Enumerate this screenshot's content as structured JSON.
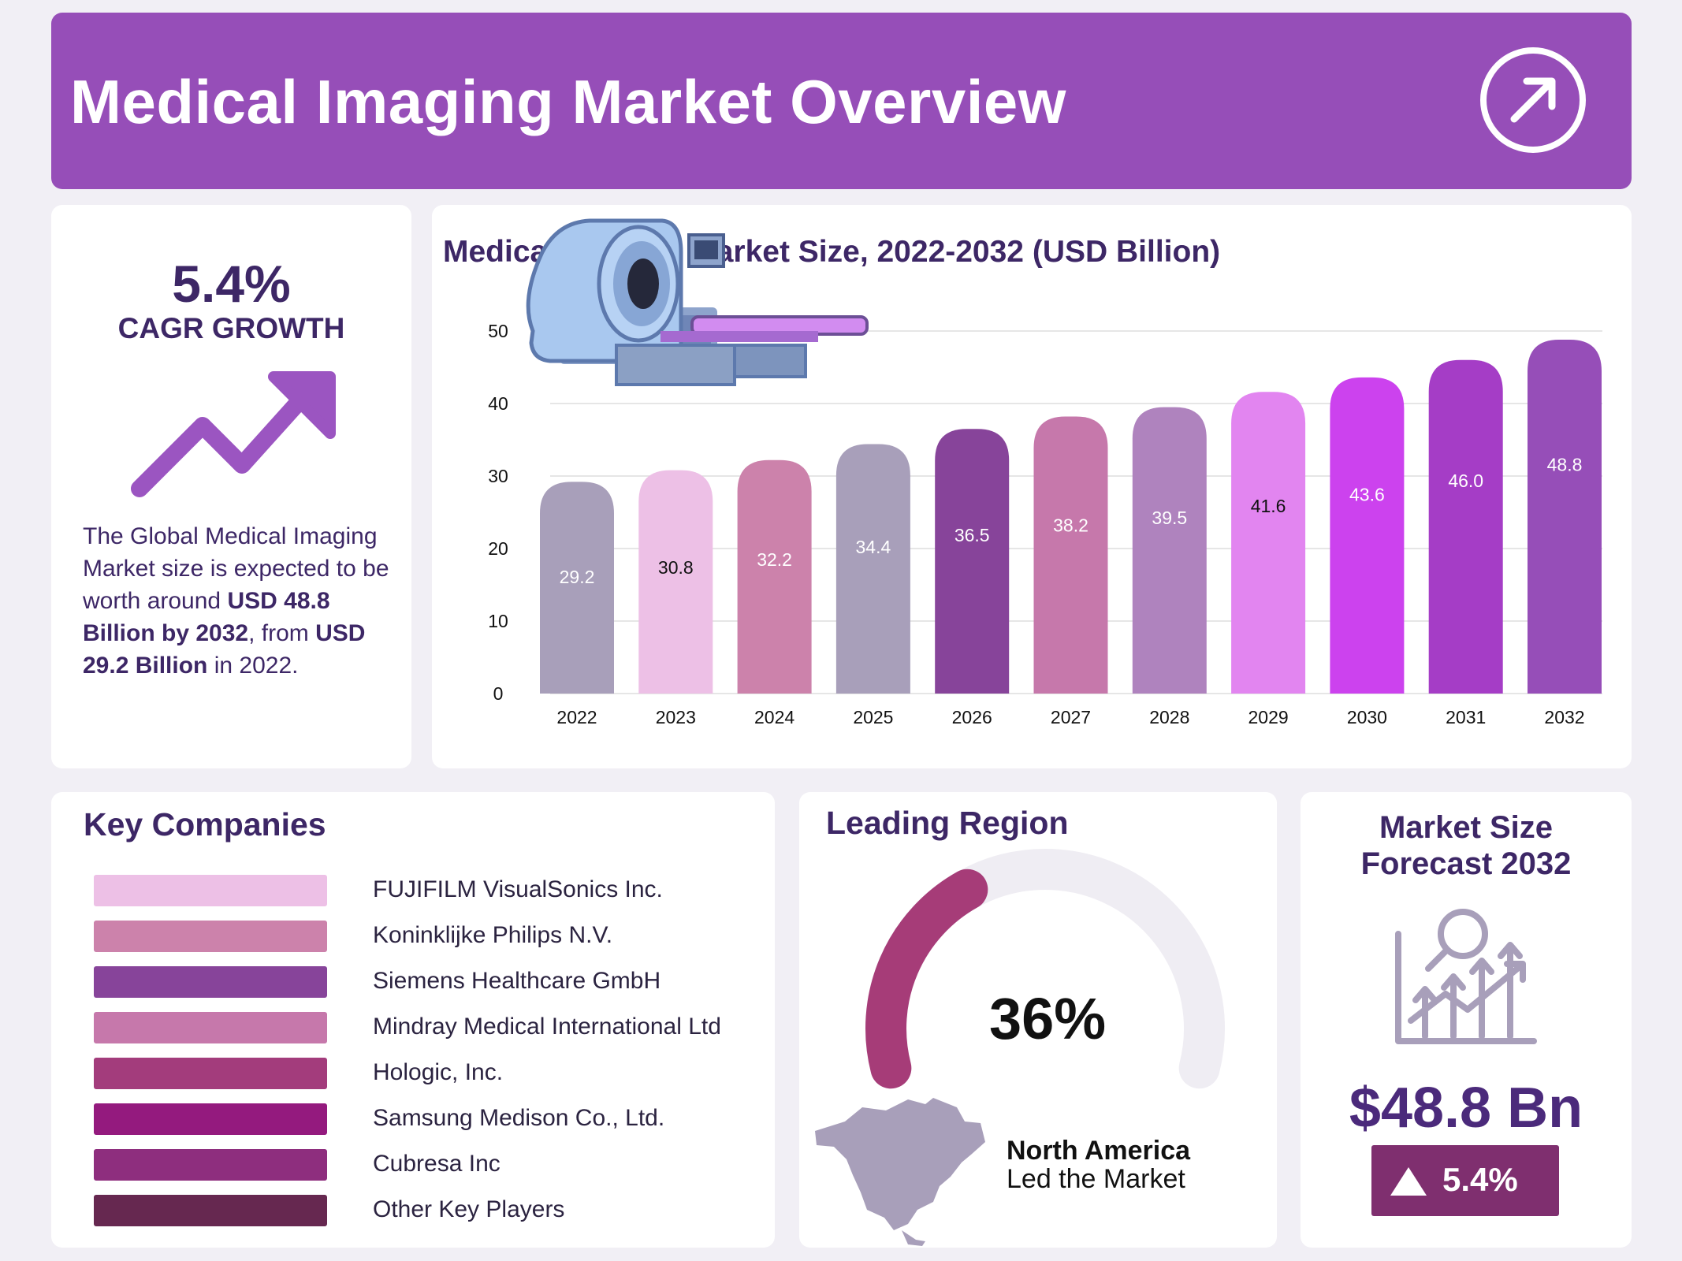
{
  "header": {
    "title": "Medical Imaging Market Overview",
    "icon": "arrow-up-right-circle-icon"
  },
  "cagr": {
    "value": "5.4%",
    "label": "CAGR GROWTH",
    "icon": "trend-up-arrow-icon",
    "text_1": "The Global Medical Imaging Market size is expected to be worth around ",
    "bold_1": "USD 48.8 Billion by 2032",
    "text_2": ", from ",
    "bold_2": "USD 29.2 Billion",
    "text_3": " in 2022."
  },
  "chart_data": {
    "type": "bar",
    "title": "Medical Imaging Market Size, 2022-2032 (USD Billion)",
    "categories": [
      "2022",
      "2023",
      "2024",
      "2025",
      "2026",
      "2027",
      "2028",
      "2029",
      "2030",
      "2031",
      "2032"
    ],
    "values": [
      29.2,
      30.8,
      32.2,
      34.4,
      36.5,
      38.2,
      39.5,
      41.6,
      43.6,
      46.0,
      48.8
    ],
    "data_labels": [
      "29.2",
      "30.8",
      "32.2",
      "34.4",
      "36.5",
      "38.2",
      "39.5",
      "41.6",
      "43.6",
      "46.0",
      "48.8"
    ],
    "yticks": [
      "0",
      "10",
      "20",
      "30",
      "40",
      "50"
    ],
    "ylim": [
      0,
      50
    ],
    "grid": true,
    "xlabel": "",
    "ylabel": "",
    "colors": [
      "#a89fba",
      "#edc0e6",
      "#cc82ab",
      "#a89fba",
      "#87449a",
      "#c678ab",
      "#af83be",
      "#e285f0",
      "#cc42ee",
      "#a53dc6",
      "#964eb8"
    ],
    "label_colors": [
      "#ffffff",
      "#111111",
      "#ffffff",
      "#ffffff",
      "#ffffff",
      "#ffffff",
      "#ffffff",
      "#111111",
      "#ffffff",
      "#ffffff",
      "#ffffff"
    ],
    "illustration": "mri-scanner-icon"
  },
  "companies": {
    "title": "Key Companies",
    "items": [
      {
        "name": "FUJIFILM VisualSonics Inc.",
        "color": "#edc0e6"
      },
      {
        "name": "Koninklijke Philips N.V.",
        "color": "#cc82ab"
      },
      {
        "name": "Siemens Healthcare GmbH",
        "color": "#87449a"
      },
      {
        "name": "Mindray Medical International Ltd",
        "color": "#c678ab"
      },
      {
        "name": "Hologic, Inc.",
        "color": "#a33c7c"
      },
      {
        "name": "Samsung Medison Co., Ltd.",
        "color": "#941a7e"
      },
      {
        "name": "Cubresa Inc",
        "color": "#8e2e7e"
      },
      {
        "name": "Other Key Players",
        "color": "#662850"
      }
    ]
  },
  "region": {
    "title": "Leading Region",
    "percent": "36%",
    "share": 0.36,
    "name": "North America",
    "subtitle": "Led the Market",
    "gauge_color": "#a63c78",
    "track_color": "#efedf3",
    "map_icon": "north-america-map-icon"
  },
  "forecast": {
    "title_line1": "Market Size",
    "title_line2": "Forecast 2032",
    "icon": "magnifier-growth-chart-icon",
    "value": "$48.8 Bn",
    "badge": "5.4%",
    "badge_icon": "triangle-up-icon"
  }
}
